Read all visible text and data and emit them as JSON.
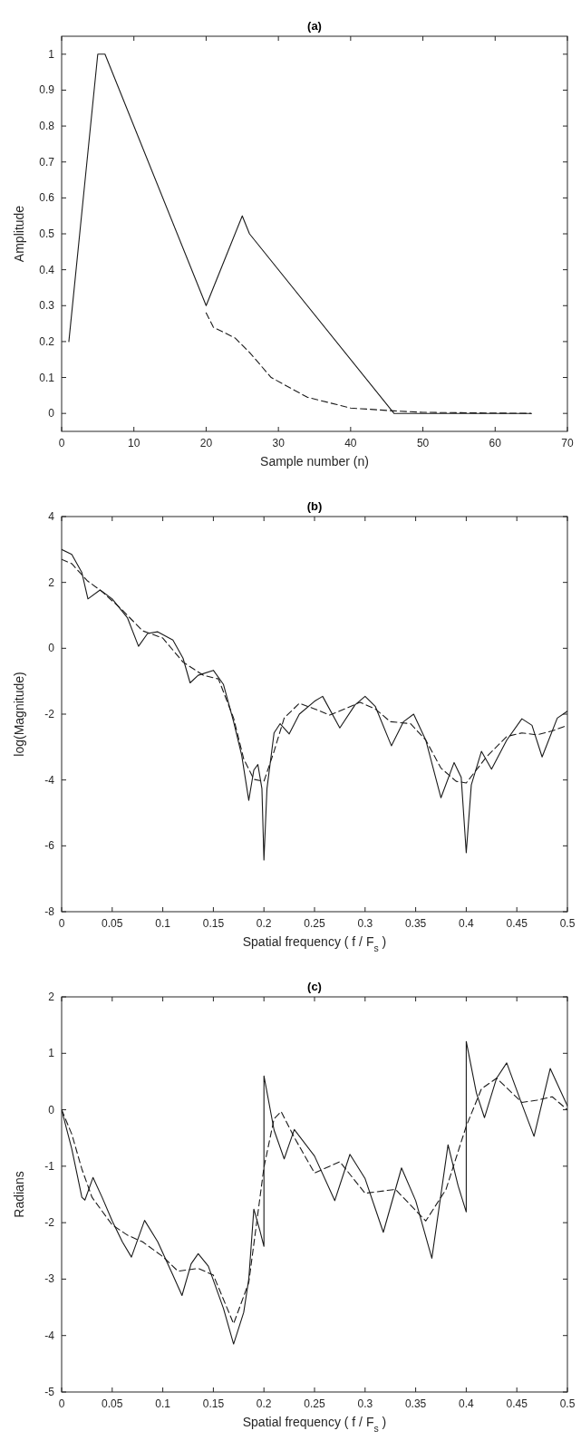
{
  "chart_data": [
    {
      "type": "line",
      "title": "(a)",
      "xlabel": "Sample number (n)",
      "ylabel": "Amplitude",
      "xlim": [
        0,
        70
      ],
      "xticks": [
        0,
        10,
        20,
        30,
        40,
        50,
        60,
        70
      ],
      "ylim": [
        -0.05,
        1.05
      ],
      "yticks": [
        0,
        0.1,
        0.2,
        0.3,
        0.4,
        0.5,
        0.6,
        0.7,
        0.8,
        0.9,
        1
      ],
      "series": [
        {
          "color": "#1a1a1a",
          "line_style": "solid",
          "x": [
            1,
            5,
            6,
            20,
            25,
            26,
            46,
            65
          ],
          "values": [
            0.2,
            1,
            1,
            0.3,
            0.55,
            0.5,
            0,
            0
          ]
        },
        {
          "color": "#1a1a1a",
          "line_style": "dashed",
          "x": [
            20,
            21,
            24,
            26,
            29,
            34,
            40,
            46,
            50,
            65
          ],
          "values": [
            0.28,
            0.24,
            0.21,
            0.17,
            0.1,
            0.045,
            0.015,
            0.007,
            0.003,
            0
          ]
        }
      ]
    },
    {
      "type": "line",
      "title": "(b)",
      "xlabel": "Spatial frequency ( f / F$_{s}$ )",
      "ylabel": "log(Magnitude)",
      "xlim": [
        0,
        0.5
      ],
      "xticks": [
        0,
        0.05,
        0.1,
        0.15,
        0.2,
        0.25,
        0.3,
        0.35,
        0.4,
        0.45,
        0.5
      ],
      "ylim": [
        -8,
        4
      ],
      "yticks": [
        -8,
        -6,
        -4,
        -2,
        0,
        2,
        4
      ],
      "series": [
        {
          "color": "#1a1a1a",
          "line_style": "solid",
          "x": [
            0,
            0.01,
            0.02,
            0.026,
            0.038,
            0.05,
            0.065,
            0.076,
            0.085,
            0.095,
            0.11,
            0.12,
            0.127,
            0.135,
            0.15,
            0.16,
            0.17,
            0.178,
            0.185,
            0.19,
            0.194,
            0.198,
            0.2,
            0.203,
            0.21,
            0.216,
            0.225,
            0.235,
            0.25,
            0.258,
            0.275,
            0.29,
            0.3,
            0.31,
            0.326,
            0.338,
            0.348,
            0.36,
            0.375,
            0.388,
            0.395,
            0.4,
            0.405,
            0.415,
            0.425,
            0.44,
            0.455,
            0.465,
            0.475,
            0.49,
            0.5
          ],
          "values": [
            3.0,
            2.85,
            2.3,
            1.5,
            1.77,
            1.5,
            0.93,
            0.06,
            0.45,
            0.5,
            0.25,
            -0.3,
            -1.05,
            -0.82,
            -0.67,
            -1.1,
            -2.23,
            -3.25,
            -4.62,
            -3.7,
            -3.53,
            -4.26,
            -6.43,
            -4.26,
            -2.57,
            -2.29,
            -2.6,
            -2.0,
            -1.61,
            -1.46,
            -2.42,
            -1.72,
            -1.46,
            -1.76,
            -2.96,
            -2.23,
            -2.0,
            -2.79,
            -4.54,
            -3.47,
            -3.92,
            -6.21,
            -4.15,
            -3.13,
            -3.67,
            -2.79,
            -2.14,
            -2.34,
            -3.3,
            -2.12,
            -1.91
          ]
        },
        {
          "color": "#1a1a1a",
          "line_style": "dashed",
          "x": [
            0,
            0.01,
            0.025,
            0.04,
            0.06,
            0.08,
            0.1,
            0.12,
            0.14,
            0.155,
            0.17,
            0.18,
            0.19,
            0.2,
            0.21,
            0.22,
            0.235,
            0.25,
            0.265,
            0.28,
            0.295,
            0.31,
            0.325,
            0.345,
            0.36,
            0.375,
            0.39,
            0.4,
            0.42,
            0.44,
            0.455,
            0.47,
            0.485,
            0.5
          ],
          "values": [
            2.7,
            2.57,
            2.06,
            1.72,
            1.16,
            0.53,
            0.31,
            -0.42,
            -0.82,
            -0.93,
            -2.12,
            -3.36,
            -3.98,
            -4.04,
            -3.13,
            -2.12,
            -1.67,
            -1.84,
            -2.03,
            -1.84,
            -1.64,
            -1.84,
            -2.23,
            -2.29,
            -2.79,
            -3.64,
            -4.04,
            -4.09,
            -3.3,
            -2.68,
            -2.57,
            -2.63,
            -2.51,
            -2.34
          ]
        }
      ]
    },
    {
      "type": "line",
      "title": "(c)",
      "xlabel": "Spatial frequency ( f / F$_{s}$ )",
      "ylabel": "Radians",
      "xlim": [
        0,
        0.5
      ],
      "xticks": [
        0,
        0.05,
        0.1,
        0.15,
        0.2,
        0.25,
        0.3,
        0.35,
        0.4,
        0.45,
        0.5
      ],
      "ylim": [
        -5,
        2
      ],
      "yticks": [
        -5,
        -4,
        -3,
        -2,
        -1,
        0,
        1,
        2
      ],
      "series": [
        {
          "color": "#1a1a1a",
          "line_style": "solid",
          "x": [
            0,
            0.01,
            0.02,
            0.023,
            0.031,
            0.04,
            0.05,
            0.06,
            0.069,
            0.082,
            0.095,
            0.11,
            0.119,
            0.128,
            0.135,
            0.145,
            0.16,
            0.17,
            0.18,
            0.185,
            0.19,
            0.196,
            0.2,
            0.2,
            0.21,
            0.22,
            0.23,
            0.25,
            0.27,
            0.285,
            0.3,
            0.318,
            0.336,
            0.35,
            0.366,
            0.382,
            0.392,
            0.4,
            0.4,
            0.41,
            0.418,
            0.43,
            0.44,
            0.455,
            0.467,
            0.483,
            0.5
          ],
          "values": [
            0,
            -0.69,
            -1.55,
            -1.6,
            -1.2,
            -1.55,
            -1.97,
            -2.34,
            -2.61,
            -1.96,
            -2.34,
            -2.93,
            -3.29,
            -2.73,
            -2.55,
            -2.77,
            -3.52,
            -4.15,
            -3.59,
            -3.0,
            -1.76,
            -2.14,
            -2.42,
            0.6,
            -0.36,
            -0.87,
            -0.35,
            -0.82,
            -1.61,
            -0.79,
            -1.22,
            -2.17,
            -1.03,
            -1.61,
            -2.63,
            -0.62,
            -1.35,
            -1.81,
            1.21,
            0.3,
            -0.14,
            0.56,
            0.83,
            0.1,
            -0.47,
            0.73,
            0.07
          ]
        },
        {
          "color": "#1a1a1a",
          "line_style": "dashed",
          "x": [
            0,
            0.01,
            0.02,
            0.03,
            0.05,
            0.065,
            0.08,
            0.1,
            0.115,
            0.135,
            0.15,
            0.17,
            0.185,
            0.2,
            0.21,
            0.217,
            0.23,
            0.25,
            0.275,
            0.3,
            0.33,
            0.36,
            0.38,
            0.4,
            0.415,
            0.43,
            0.455,
            0.47,
            0.485,
            0.5
          ],
          "values": [
            0,
            -0.43,
            -1.05,
            -1.55,
            -2.04,
            -2.22,
            -2.34,
            -2.6,
            -2.86,
            -2.81,
            -2.93,
            -3.79,
            -3.06,
            -1.02,
            -0.16,
            -0.03,
            -0.49,
            -1.12,
            -0.92,
            -1.48,
            -1.41,
            -1.97,
            -1.41,
            -0.29,
            0.37,
            0.56,
            0.13,
            0.17,
            0.23,
            0
          ]
        }
      ]
    }
  ]
}
